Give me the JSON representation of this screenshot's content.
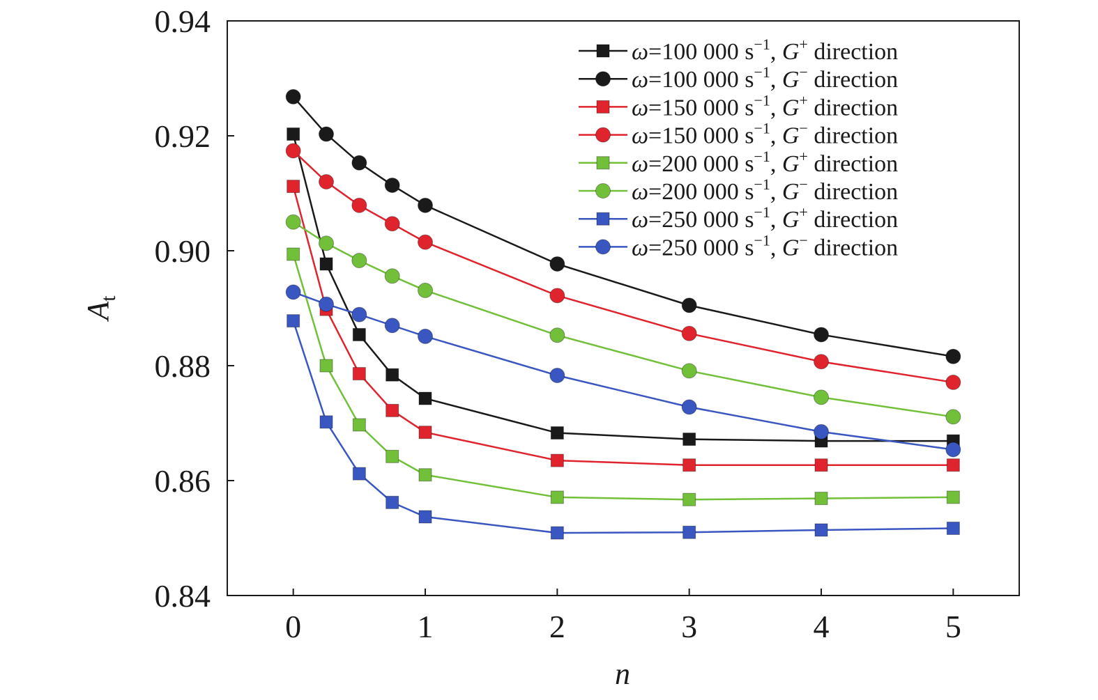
{
  "chart_data": {
    "type": "line",
    "x": [
      0,
      0.25,
      0.5,
      0.75,
      1,
      2,
      3,
      4,
      5
    ],
    "x_ticks": [
      "0",
      "1",
      "2",
      "3",
      "4",
      "5"
    ],
    "y_ticks": [
      "0.84",
      "0.86",
      "0.88",
      "0.90",
      "0.92",
      "0.94"
    ],
    "xlim": [
      -0.5,
      5.5
    ],
    "ylim": [
      0.84,
      0.94
    ],
    "xlabel": "n",
    "ylabel": "A",
    "ylabel_sub": "t",
    "grid": false,
    "legend_position": "top-right",
    "series": [
      {
        "omega": "100 000",
        "dir_sup": "+",
        "marker": "square",
        "color": "#1a1a1a",
        "values": [
          0.9203,
          0.8977,
          0.8854,
          0.8784,
          0.8743,
          0.8683,
          0.8672,
          0.8669,
          0.8669
        ]
      },
      {
        "omega": "100 000",
        "dir_sup": "−",
        "marker": "circle",
        "color": "#1a1a1a",
        "values": [
          0.9268,
          0.9203,
          0.9153,
          0.9114,
          0.9079,
          0.8977,
          0.8905,
          0.8854,
          0.8816
        ]
      },
      {
        "omega": "150 000",
        "dir_sup": "+",
        "marker": "square",
        "color": "#e0242e",
        "values": [
          0.9112,
          0.8898,
          0.8786,
          0.8722,
          0.8684,
          0.8635,
          0.8627,
          0.8627,
          0.8627
        ]
      },
      {
        "omega": "150 000",
        "dir_sup": "−",
        "marker": "circle",
        "color": "#e0242e",
        "values": [
          0.9174,
          0.912,
          0.9079,
          0.9047,
          0.9015,
          0.8922,
          0.8856,
          0.8807,
          0.8771
        ]
      },
      {
        "omega": "200 000",
        "dir_sup": "+",
        "marker": "square",
        "color": "#72c03a",
        "values": [
          0.8994,
          0.88,
          0.8697,
          0.8642,
          0.861,
          0.8571,
          0.8567,
          0.8569,
          0.8571
        ]
      },
      {
        "omega": "200 000",
        "dir_sup": "−",
        "marker": "circle",
        "color": "#72c03a",
        "values": [
          0.905,
          0.9013,
          0.8983,
          0.8956,
          0.8931,
          0.8853,
          0.8791,
          0.8745,
          0.8711
        ]
      },
      {
        "omega": "250 000",
        "dir_sup": "+",
        "marker": "square",
        "color": "#3a56c0",
        "values": [
          0.8878,
          0.8702,
          0.8612,
          0.8562,
          0.8537,
          0.8509,
          0.851,
          0.8514,
          0.8517
        ]
      },
      {
        "omega": "250 000",
        "dir_sup": "−",
        "marker": "circle",
        "color": "#3a56c0",
        "values": [
          0.8928,
          0.8907,
          0.8889,
          0.887,
          0.8851,
          0.8783,
          0.8728,
          0.8685,
          0.8654
        ]
      }
    ],
    "legend_text": {
      "omega_symbol": "ω",
      "equals": "=",
      "unit": " s",
      "unit_exp": "−1",
      "comma": ", ",
      "g_symbol": "G",
      "direction_word": " direction"
    }
  }
}
